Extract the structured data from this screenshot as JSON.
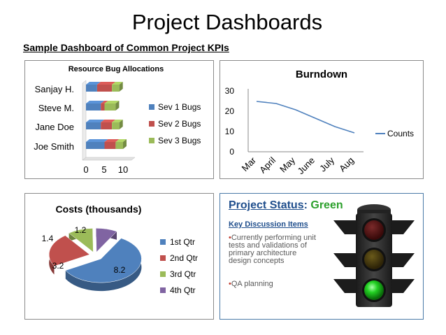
{
  "page": {
    "title": "Project Dashboards",
    "subtitle": "Sample Dashboard of Common Project KPIs"
  },
  "bug_chart": {
    "title": "Resource Bug Allocations",
    "categories": [
      "Sanjay H.",
      "Steve M.",
      "Jane Doe",
      "Joe Smith"
    ],
    "ticks": [
      "0",
      "5",
      "10"
    ],
    "legend": [
      "Sev 1 Bugs",
      "Sev 2 Bugs",
      "Sev 3 Bugs"
    ]
  },
  "burndown_chart": {
    "title": "Burndown",
    "ticks": [
      "0",
      "10",
      "20",
      "30"
    ],
    "months": [
      "Mar",
      "April",
      "May",
      "June",
      "July",
      "Aug"
    ],
    "legend": "Counts"
  },
  "costs_chart": {
    "title": "Costs (thousands)",
    "labels": [
      "8.2",
      "3.2",
      "1.4",
      "1.2"
    ],
    "legend": [
      "1st Qtr",
      "2nd Qtr",
      "3rd Qtr",
      "4th Qtr"
    ]
  },
  "status": {
    "label": "Project Status",
    "colon": ":",
    "value": "Green",
    "discussion_title": "Key Discussion Items",
    "items": [
      "Currently performing unit tests and validations of primary architecture design concepts",
      "QA planning"
    ],
    "bullet": "•"
  },
  "colors": {
    "sev1": "#4f81bd",
    "sev2": "#c0504d",
    "sev3": "#9bbb59",
    "q4": "#8064a2",
    "status_heading": "#1f4e8c",
    "status_green": "#2ca02c"
  },
  "icons": [
    "traffic-light-icon"
  ],
  "chart_data": [
    {
      "type": "bar",
      "orientation": "horizontal",
      "stacked": true,
      "title": "Resource Bug Allocations",
      "categories": [
        "Sanjay H.",
        "Steve M.",
        "Jane Doe",
        "Joe Smith"
      ],
      "series": [
        {
          "name": "Sev 1 Bugs",
          "values": [
            3,
            4,
            4,
            5
          ]
        },
        {
          "name": "Sev 2 Bugs",
          "values": [
            4,
            1,
            3,
            3
          ]
        },
        {
          "name": "Sev 3 Bugs",
          "values": [
            2,
            3,
            2,
            2
          ]
        }
      ],
      "xlim": [
        0,
        10
      ],
      "legend": "right"
    },
    {
      "type": "line",
      "title": "Burndown",
      "categories": [
        "Mar",
        "April",
        "May",
        "June",
        "July",
        "Aug"
      ],
      "series": [
        {
          "name": "Counts",
          "values": [
            24,
            23,
            20,
            16,
            12,
            9
          ]
        }
      ],
      "ylim": [
        0,
        30
      ],
      "legend": "right"
    },
    {
      "type": "pie",
      "title": "Costs (thousands)",
      "categories": [
        "1st Qtr",
        "2nd Qtr",
        "3rd Qtr",
        "4th Qtr"
      ],
      "values": [
        8.2,
        3.2,
        1.4,
        1.2
      ],
      "legend": "right"
    }
  ]
}
